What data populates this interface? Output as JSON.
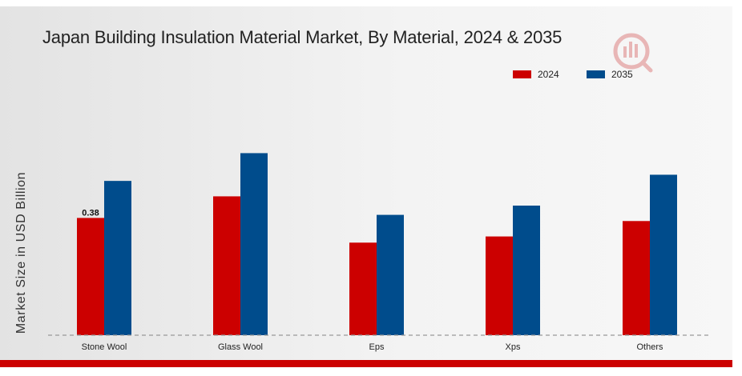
{
  "colors": {
    "2024": "#cc0000",
    "2035": "#004c8c"
  },
  "chart_data": {
    "type": "bar",
    "title": "Japan Building Insulation Material Market, By Material, 2024 & 2035",
    "ylabel": "Market Size in USD Billion",
    "xlabel": "",
    "categories": [
      "Stone Wool",
      "Glass Wool",
      "Eps",
      "Xps",
      "Others"
    ],
    "series": [
      {
        "name": "2024",
        "values": [
          0.38,
          0.45,
          0.3,
          0.32,
          0.37
        ]
      },
      {
        "name": "2035",
        "values": [
          0.5,
          0.59,
          0.39,
          0.42,
          0.52
        ]
      }
    ],
    "data_labels": [
      {
        "series": "2024",
        "category": "Stone Wool",
        "text": "0.38"
      }
    ],
    "ylim": [
      0,
      0.7
    ],
    "grid": false,
    "legend_position": "top-right"
  }
}
